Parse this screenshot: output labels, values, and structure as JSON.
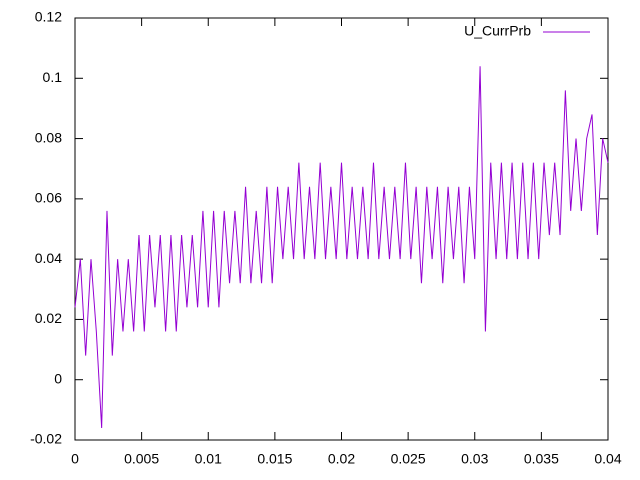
{
  "chart_data": {
    "type": "line",
    "x": [
      0,
      0.0004,
      0.0008,
      0.0012,
      0.0016,
      0.002,
      0.0024,
      0.0028,
      0.0032,
      0.0036,
      0.004,
      0.0044,
      0.0048,
      0.0052,
      0.0056,
      0.006,
      0.0064,
      0.0068,
      0.0072,
      0.0076,
      0.008,
      0.0084,
      0.0088,
      0.0092,
      0.0096,
      0.01,
      0.0104,
      0.0108,
      0.0112,
      0.0116,
      0.012,
      0.0124,
      0.0128,
      0.0132,
      0.0136,
      0.014,
      0.0144,
      0.0148,
      0.0152,
      0.0156,
      0.016,
      0.0164,
      0.0168,
      0.0172,
      0.0176,
      0.018,
      0.0184,
      0.0188,
      0.0192,
      0.0196,
      0.02,
      0.0204,
      0.0208,
      0.0212,
      0.0216,
      0.022,
      0.0224,
      0.0228,
      0.0232,
      0.0236,
      0.024,
      0.0244,
      0.0248,
      0.0252,
      0.0256,
      0.026,
      0.0264,
      0.0268,
      0.0272,
      0.0276,
      0.028,
      0.0284,
      0.0288,
      0.0292,
      0.0296,
      0.03,
      0.0304,
      0.0308,
      0.0312,
      0.0316,
      0.032,
      0.0324,
      0.0328,
      0.0332,
      0.0336,
      0.034,
      0.0344,
      0.0348,
      0.0352,
      0.0356,
      0.036,
      0.0364,
      0.0368,
      0.0372,
      0.0376,
      0.038,
      0.0384,
      0.0388,
      0.0392,
      0.0396,
      0.04
    ],
    "series": [
      {
        "name": "U_CurrPrb",
        "color": "#9400d3",
        "values": [
          0.024,
          0.04,
          0.008,
          0.04,
          0.016,
          -0.016,
          0.056,
          0.008,
          0.04,
          0.016,
          0.04,
          0.016,
          0.048,
          0.016,
          0.048,
          0.024,
          0.048,
          0.016,
          0.048,
          0.016,
          0.048,
          0.024,
          0.048,
          0.024,
          0.056,
          0.024,
          0.056,
          0.024,
          0.056,
          0.032,
          0.056,
          0.032,
          0.064,
          0.032,
          0.056,
          0.032,
          0.064,
          0.032,
          0.064,
          0.04,
          0.064,
          0.04,
          0.072,
          0.04,
          0.064,
          0.04,
          0.072,
          0.04,
          0.064,
          0.04,
          0.072,
          0.04,
          0.064,
          0.04,
          0.064,
          0.04,
          0.072,
          0.04,
          0.064,
          0.04,
          0.064,
          0.04,
          0.072,
          0.04,
          0.064,
          0.032,
          0.064,
          0.04,
          0.064,
          0.032,
          0.064,
          0.04,
          0.064,
          0.032,
          0.064,
          0.04,
          0.104,
          0.016,
          0.072,
          0.04,
          0.072,
          0.04,
          0.072,
          0.04,
          0.072,
          0.04,
          0.072,
          0.04,
          0.072,
          0.048,
          0.072,
          0.048,
          0.096,
          0.056,
          0.08,
          0.056,
          0.08,
          0.088,
          0.048,
          0.08,
          0.072
        ]
      }
    ],
    "xlim": [
      0,
      0.04
    ],
    "xticks": [
      0,
      0.005,
      0.01,
      0.015,
      0.02,
      0.025,
      0.03,
      0.035,
      0.04
    ],
    "ylim": [
      -0.02,
      0.12
    ],
    "yticks": [
      -0.02,
      0,
      0.02,
      0.04,
      0.06,
      0.08,
      0.1,
      0.12
    ],
    "legend": "top-right"
  }
}
